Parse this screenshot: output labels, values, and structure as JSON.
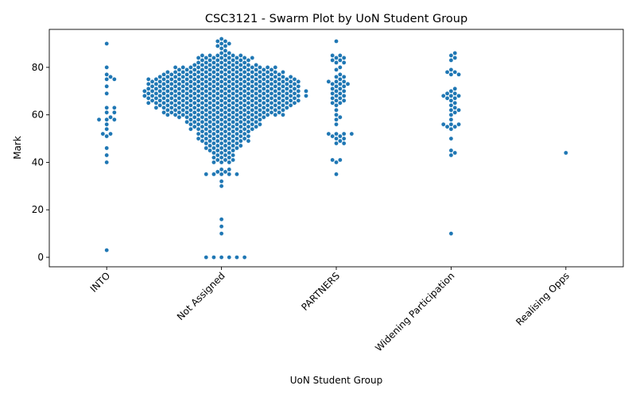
{
  "chart_data": {
    "type": "scatter",
    "variant": "swarm",
    "title": "CSC3121 - Swarm Plot by UoN Student Group",
    "xlabel": "UoN Student Group",
    "ylabel": "Mark",
    "categories": [
      "INTO",
      "Not Assigned",
      "PARTNERS",
      "Widening Participation",
      "Realising Opps"
    ],
    "ylim": [
      -4,
      96
    ],
    "yticks": [
      0,
      20,
      40,
      60,
      80
    ],
    "grid": false,
    "legend": "none",
    "marker_color": "#1f77b4",
    "series": [
      {
        "category": "INTO",
        "values": [
          90,
          80,
          77,
          76,
          75,
          75,
          72,
          69,
          63,
          63,
          61,
          61,
          59,
          58,
          58,
          58,
          56,
          54,
          52,
          52,
          51,
          46,
          43,
          40,
          3
        ]
      },
      {
        "category": "Not Assigned",
        "values": [
          92,
          91,
          91,
          90,
          90,
          89,
          89,
          88,
          87,
          86,
          86,
          85,
          85,
          85,
          85,
          85,
          85,
          84,
          84,
          84,
          84,
          84,
          84,
          84,
          84,
          83,
          83,
          83,
          83,
          83,
          83,
          83,
          82,
          82,
          82,
          82,
          82,
          82,
          82,
          81,
          81,
          81,
          81,
          81,
          81,
          81,
          81,
          81,
          80,
          80,
          80,
          80,
          80,
          80,
          80,
          80,
          80,
          80,
          80,
          80,
          80,
          80,
          79,
          79,
          79,
          79,
          79,
          79,
          79,
          79,
          79,
          79,
          79,
          79,
          79,
          78,
          78,
          78,
          78,
          78,
          78,
          78,
          78,
          78,
          78,
          78,
          78,
          78,
          78,
          78,
          78,
          77,
          77,
          77,
          77,
          77,
          77,
          77,
          77,
          77,
          77,
          77,
          77,
          77,
          77,
          77,
          77,
          76,
          76,
          76,
          76,
          76,
          76,
          76,
          76,
          76,
          76,
          76,
          76,
          76,
          76,
          76,
          76,
          76,
          76,
          75,
          75,
          75,
          75,
          75,
          75,
          75,
          75,
          75,
          75,
          75,
          75,
          75,
          75,
          75,
          75,
          75,
          75,
          75,
          75,
          74,
          74,
          74,
          74,
          74,
          74,
          74,
          74,
          74,
          74,
          74,
          74,
          74,
          74,
          74,
          74,
          74,
          74,
          74,
          74,
          73,
          73,
          73,
          73,
          73,
          73,
          73,
          73,
          73,
          73,
          73,
          73,
          73,
          73,
          73,
          73,
          73,
          73,
          73,
          73,
          72,
          72,
          72,
          72,
          72,
          72,
          72,
          72,
          72,
          72,
          72,
          72,
          72,
          72,
          72,
          72,
          72,
          72,
          72,
          72,
          71,
          71,
          71,
          71,
          71,
          71,
          71,
          71,
          71,
          71,
          71,
          71,
          71,
          71,
          71,
          71,
          71,
          71,
          71,
          71,
          70,
          70,
          70,
          70,
          70,
          70,
          70,
          70,
          70,
          70,
          70,
          70,
          70,
          70,
          70,
          70,
          70,
          70,
          70,
          70,
          70,
          70,
          69,
          69,
          69,
          69,
          69,
          69,
          69,
          69,
          69,
          69,
          69,
          69,
          69,
          69,
          69,
          69,
          69,
          69,
          69,
          69,
          68,
          68,
          68,
          68,
          68,
          68,
          68,
          68,
          68,
          68,
          68,
          68,
          68,
          68,
          68,
          68,
          68,
          68,
          68,
          68,
          68,
          68,
          67,
          67,
          67,
          67,
          67,
          67,
          67,
          67,
          67,
          67,
          67,
          67,
          67,
          67,
          67,
          67,
          67,
          67,
          67,
          67,
          66,
          66,
          66,
          66,
          66,
          66,
          66,
          66,
          66,
          66,
          66,
          66,
          66,
          66,
          66,
          66,
          66,
          66,
          66,
          66,
          65,
          65,
          65,
          65,
          65,
          65,
          65,
          65,
          65,
          65,
          65,
          65,
          65,
          65,
          65,
          65,
          65,
          65,
          65,
          65,
          64,
          64,
          64,
          64,
          64,
          64,
          64,
          64,
          64,
          64,
          64,
          64,
          64,
          64,
          64,
          64,
          64,
          64,
          63,
          63,
          63,
          63,
          63,
          63,
          63,
          63,
          63,
          63,
          63,
          63,
          63,
          63,
          63,
          63,
          63,
          63,
          62,
          62,
          62,
          62,
          62,
          62,
          62,
          62,
          62,
          62,
          62,
          62,
          62,
          62,
          62,
          62,
          61,
          61,
          61,
          61,
          61,
          61,
          61,
          61,
          61,
          61,
          61,
          61,
          61,
          61,
          61,
          61,
          60,
          60,
          60,
          60,
          60,
          60,
          60,
          60,
          60,
          60,
          60,
          60,
          60,
          60,
          60,
          60,
          59,
          59,
          59,
          59,
          59,
          59,
          59,
          59,
          59,
          59,
          59,
          59,
          58,
          58,
          58,
          58,
          58,
          58,
          58,
          58,
          58,
          58,
          57,
          57,
          57,
          57,
          57,
          57,
          57,
          57,
          57,
          57,
          56,
          56,
          56,
          56,
          56,
          56,
          56,
          56,
          56,
          56,
          55,
          55,
          55,
          55,
          55,
          55,
          55,
          55,
          55,
          54,
          54,
          54,
          54,
          54,
          54,
          54,
          54,
          54,
          53,
          53,
          53,
          53,
          53,
          53,
          53,
          52,
          52,
          52,
          52,
          52,
          52,
          52,
          51,
          51,
          51,
          51,
          51,
          51,
          51,
          50,
          50,
          50,
          50,
          50,
          50,
          50,
          49,
          49,
          49,
          49,
          49,
          49,
          49,
          48,
          48,
          48,
          48,
          48,
          47,
          47,
          47,
          47,
          47,
          46,
          46,
          46,
          46,
          46,
          45,
          45,
          45,
          45,
          44,
          44,
          44,
          43,
          43,
          43,
          42,
          42,
          42,
          41,
          41,
          41,
          40,
          40,
          40,
          37,
          37,
          36,
          36,
          35,
          35,
          35,
          35,
          35,
          32,
          30,
          16,
          13,
          10,
          0,
          0,
          0,
          0,
          0,
          0
        ]
      },
      {
        "category": "PARTNERS",
        "values": [
          91,
          85,
          85,
          84,
          84,
          83,
          83,
          82,
          82,
          80,
          79,
          77,
          76,
          76,
          75,
          74,
          74,
          74,
          73,
          73,
          73,
          72,
          72,
          71,
          71,
          70,
          70,
          69,
          69,
          68,
          68,
          67,
          67,
          66,
          66,
          65,
          65,
          64,
          62,
          60,
          59,
          58,
          56,
          52,
          52,
          52,
          52,
          51,
          51,
          50,
          50,
          49,
          48,
          48,
          41,
          41,
          40,
          35
        ]
      },
      {
        "category": "Widening Participation",
        "values": [
          86,
          85,
          84,
          83,
          79,
          78,
          78,
          77,
          77,
          71,
          70,
          69,
          69,
          68,
          68,
          68,
          67,
          67,
          66,
          65,
          64,
          63,
          62,
          62,
          61,
          60,
          58,
          56,
          56,
          56,
          55,
          55,
          54,
          50,
          45,
          44,
          43,
          10
        ]
      },
      {
        "category": "Realising Opps",
        "values": [
          44
        ]
      }
    ]
  }
}
